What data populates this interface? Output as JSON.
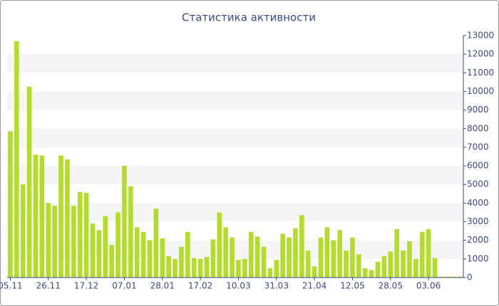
{
  "chart_data": {
    "type": "bar",
    "title": "Статистика активности",
    "categories": [
      "05.11",
      null,
      null,
      null,
      null,
      null,
      "26.11",
      null,
      null,
      null,
      null,
      null,
      "17.12",
      null,
      null,
      null,
      null,
      null,
      "07.01",
      null,
      null,
      null,
      null,
      null,
      "28.01",
      null,
      null,
      null,
      null,
      null,
      "17.02",
      null,
      null,
      null,
      null,
      null,
      "10.03",
      null,
      null,
      null,
      null,
      null,
      "31.03",
      null,
      null,
      null,
      null,
      null,
      "21.04",
      null,
      null,
      null,
      null,
      null,
      "12.05",
      null,
      null,
      null,
      null,
      null,
      "28.05",
      null,
      null,
      null,
      null,
      null,
      "03.06",
      null,
      null,
      null,
      null,
      null
    ],
    "values": [
      7850,
      12700,
      5000,
      10250,
      6600,
      6550,
      4000,
      3850,
      6550,
      6350,
      3850,
      4600,
      4550,
      2900,
      2550,
      3300,
      1750,
      3500,
      6000,
      4900,
      2700,
      2450,
      2000,
      3700,
      2100,
      1150,
      1000,
      1650,
      2450,
      1050,
      1000,
      1100,
      2050,
      3500,
      2700,
      2150,
      950,
      1000,
      2450,
      2200,
      1650,
      500,
      950,
      2350,
      2150,
      2650,
      3350,
      1450,
      600,
      2150,
      2700,
      2000,
      2550,
      1450,
      2150,
      1250,
      500,
      400,
      850,
      1150,
      1400,
      2600,
      1450,
      1950,
      1000,
      2450,
      2600,
      1050,
      50,
      50,
      50,
      50
    ],
    "color": "#b3dd2a",
    "ylim": [
      0,
      13000
    ],
    "yticks": [
      0,
      1000,
      2000,
      3000,
      4000,
      5000,
      6000,
      7000,
      8000,
      9000,
      10000,
      11000,
      12000,
      13000
    ],
    "y_axis_side": "right",
    "grid": "bands"
  }
}
